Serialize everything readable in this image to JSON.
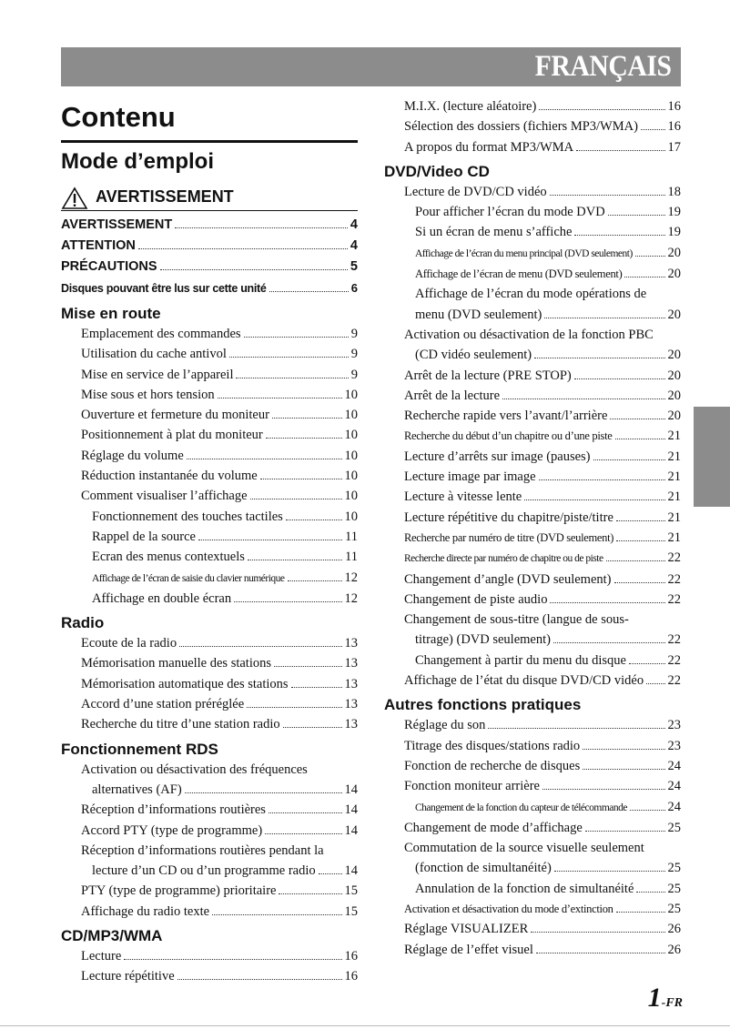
{
  "header": {
    "language": "FRANÇAIS"
  },
  "title": "Contenu",
  "subtitle": "Mode d’emploi",
  "warning_heading": "AVERTISSEMENT",
  "left": [
    {
      "type": "entry",
      "style": "sans",
      "text": "AVERTISSEMENT",
      "page": "4"
    },
    {
      "type": "entry",
      "style": "sans",
      "text": "ATTENTION",
      "page": "4"
    },
    {
      "type": "entry",
      "style": "sans",
      "text": "PRÉCAUTIONS",
      "page": "5"
    },
    {
      "type": "entry",
      "style": "sans small",
      "text": "Disques pouvant être lus sur cette unité",
      "page": "6"
    },
    {
      "type": "section",
      "text": "Mise en route"
    },
    {
      "type": "entry",
      "level": 1,
      "text": "Emplacement des commandes",
      "page": "9"
    },
    {
      "type": "entry",
      "level": 1,
      "text": "Utilisation du cache antivol",
      "page": "9"
    },
    {
      "type": "entry",
      "level": 1,
      "text": "Mise en service de l’appareil",
      "page": "9"
    },
    {
      "type": "entry",
      "level": 1,
      "text": "Mise sous et hors tension",
      "page": "10"
    },
    {
      "type": "entry",
      "level": 1,
      "text": "Ouverture et fermeture du moniteur",
      "page": "10"
    },
    {
      "type": "entry",
      "level": 1,
      "text": "Positionnement à plat du moniteur",
      "page": "10"
    },
    {
      "type": "entry",
      "level": 1,
      "text": "Réglage du volume",
      "page": "10"
    },
    {
      "type": "entry",
      "level": 1,
      "text": "Réduction instantanée du volume",
      "page": "10"
    },
    {
      "type": "entry",
      "level": 1,
      "text": "Comment visualiser l’affichage",
      "page": "10"
    },
    {
      "type": "entry",
      "level": 2,
      "text": "Fonctionnement des touches tactiles",
      "page": "10"
    },
    {
      "type": "entry",
      "level": 2,
      "text": "Rappel de la source",
      "page": "11"
    },
    {
      "type": "entry",
      "level": 2,
      "text": "Ecran des menus contextuels",
      "page": "11"
    },
    {
      "type": "entry",
      "level": 2,
      "style": "xsmall",
      "text": "Affichage de l’écran de saisie du clavier numérique",
      "page": "12"
    },
    {
      "type": "entry",
      "level": 2,
      "text": "Affichage en double écran",
      "page": "12"
    },
    {
      "type": "section",
      "text": "Radio"
    },
    {
      "type": "entry",
      "level": 1,
      "text": "Ecoute de la radio",
      "page": "13"
    },
    {
      "type": "entry",
      "level": 1,
      "text": "Mémorisation manuelle des stations",
      "page": "13"
    },
    {
      "type": "entry",
      "level": 1,
      "text": "Mémorisation automatique des stations",
      "page": "13"
    },
    {
      "type": "entry",
      "level": 1,
      "text": "Accord d’une station préréglée",
      "page": "13"
    },
    {
      "type": "entry",
      "level": 1,
      "text": "Recherche du titre d’une station radio",
      "page": "13"
    },
    {
      "type": "section",
      "text": "Fonctionnement RDS"
    },
    {
      "type": "entry",
      "level": 1,
      "text": "Activation ou désactivation des fréquences",
      "page": null
    },
    {
      "type": "entry",
      "level": 2,
      "text": "alternatives (AF)",
      "page": "14"
    },
    {
      "type": "entry",
      "level": 1,
      "text": "Réception d’informations routières",
      "page": "14"
    },
    {
      "type": "entry",
      "level": 1,
      "text": "Accord PTY (type de programme)",
      "page": "14"
    },
    {
      "type": "entry",
      "level": 1,
      "text": "Réception d’informations routières pendant la",
      "page": null
    },
    {
      "type": "entry",
      "level": 2,
      "text": "lecture d’un CD ou d’un programme radio",
      "page": "14"
    },
    {
      "type": "entry",
      "level": 1,
      "text": "PTY (type de programme) prioritaire",
      "page": "15"
    },
    {
      "type": "entry",
      "level": 1,
      "text": "Affichage du radio texte",
      "page": "15"
    },
    {
      "type": "section",
      "text": "CD/MP3/WMA"
    },
    {
      "type": "entry",
      "level": 1,
      "text": "Lecture",
      "page": "16"
    },
    {
      "type": "entry",
      "level": 1,
      "text": "Lecture répétitive",
      "page": "16"
    }
  ],
  "right": [
    {
      "type": "entry",
      "level": 1,
      "text": "M.I.X. (lecture aléatoire)",
      "page": "16"
    },
    {
      "type": "entry",
      "level": 1,
      "text": "Sélection des dossiers (fichiers MP3/WMA)",
      "page": "16"
    },
    {
      "type": "entry",
      "level": 1,
      "text": "A propos du format MP3/WMA",
      "page": "17"
    },
    {
      "type": "section",
      "text": "DVD/Video CD"
    },
    {
      "type": "entry",
      "level": 1,
      "text": "Lecture de DVD/CD vidéo",
      "page": "18"
    },
    {
      "type": "entry",
      "level": 2,
      "text": "Pour afficher l’écran du mode DVD",
      "page": "19"
    },
    {
      "type": "entry",
      "level": 2,
      "text": "Si un écran de menu s’affiche",
      "page": "19"
    },
    {
      "type": "entry",
      "level": 2,
      "style": "xsmall",
      "text": "Affichage de l’écran du menu principal (DVD seulement)",
      "page": "20"
    },
    {
      "type": "entry",
      "level": 2,
      "style": "small",
      "text": "Affichage de l’écran de menu (DVD seulement)",
      "page": "20"
    },
    {
      "type": "entry",
      "level": 2,
      "text": "Affichage de l’écran du mode opérations de",
      "page": null
    },
    {
      "type": "entry",
      "level": 2,
      "text": "menu (DVD seulement)",
      "page": "20"
    },
    {
      "type": "entry",
      "level": 1,
      "text": "Activation ou désactivation de la fonction PBC",
      "page": null
    },
    {
      "type": "entry",
      "level": 2,
      "text": "(CD vidéo seulement)",
      "page": "20"
    },
    {
      "type": "entry",
      "level": 1,
      "text": "Arrêt de la lecture (PRE STOP)",
      "page": "20"
    },
    {
      "type": "entry",
      "level": 1,
      "text": "Arrêt de la lecture",
      "page": "20"
    },
    {
      "type": "entry",
      "level": 1,
      "text": "Recherche rapide vers l’avant/l’arrière",
      "page": "20"
    },
    {
      "type": "entry",
      "level": 1,
      "style": "small",
      "text": "Recherche du début d’un chapitre ou d’une piste",
      "page": "21"
    },
    {
      "type": "entry",
      "level": 1,
      "text": "Lecture d’arrêts sur image (pauses)",
      "page": "21"
    },
    {
      "type": "entry",
      "level": 1,
      "text": "Lecture image par image",
      "page": "21"
    },
    {
      "type": "entry",
      "level": 1,
      "text": "Lecture à vitesse lente",
      "page": "21"
    },
    {
      "type": "entry",
      "level": 1,
      "text": "Lecture répétitive du chapitre/piste/titre",
      "page": "21"
    },
    {
      "type": "entry",
      "level": 1,
      "style": "small",
      "text": "Recherche par numéro de titre (DVD seulement)",
      "page": "21"
    },
    {
      "type": "entry",
      "level": 1,
      "style": "xsmall",
      "text": "Recherche directe par numéro de chapitre ou de piste",
      "page": "22"
    },
    {
      "type": "entry",
      "level": 1,
      "text": "Changement d’angle (DVD seulement)",
      "page": "22"
    },
    {
      "type": "entry",
      "level": 1,
      "text": "Changement de piste audio",
      "page": "22"
    },
    {
      "type": "entry",
      "level": 1,
      "text": "Changement de sous-titre (langue de sous-",
      "page": null
    },
    {
      "type": "entry",
      "level": 2,
      "text": "titrage) (DVD seulement)",
      "page": "22"
    },
    {
      "type": "entry",
      "level": 2,
      "text": "Changement à partir du menu du disque",
      "page": "22"
    },
    {
      "type": "entry",
      "level": 1,
      "text": "Affichage de l’état du disque DVD/CD vidéo",
      "page": "22"
    },
    {
      "type": "section",
      "text": "Autres fonctions pratiques"
    },
    {
      "type": "entry",
      "level": 1,
      "text": "Réglage du son",
      "page": "23"
    },
    {
      "type": "entry",
      "level": 1,
      "text": "Titrage des disques/stations radio",
      "page": "23"
    },
    {
      "type": "entry",
      "level": 1,
      "text": "Fonction de recherche de disques",
      "page": "24"
    },
    {
      "type": "entry",
      "level": 1,
      "text": "Fonction moniteur arrière",
      "page": "24"
    },
    {
      "type": "entry",
      "level": 2,
      "style": "xsmall",
      "text": "Changement de la fonction du capteur de télécommande",
      "page": "24"
    },
    {
      "type": "entry",
      "level": 1,
      "text": "Changement de mode d’affichage",
      "page": "25"
    },
    {
      "type": "entry",
      "level": 1,
      "text": "Commutation de la source visuelle seulement",
      "page": null
    },
    {
      "type": "entry",
      "level": 2,
      "text": "(fonction de simultanéité)",
      "page": "25"
    },
    {
      "type": "entry",
      "level": 2,
      "text": "Annulation de la fonction de simultanéité",
      "page": "25"
    },
    {
      "type": "entry",
      "level": 1,
      "style": "small",
      "text": "Activation et désactivation du mode d’extinction",
      "page": "25"
    },
    {
      "type": "entry",
      "level": 1,
      "text": "Réglage VISUALIZER",
      "page": "26"
    },
    {
      "type": "entry",
      "level": 1,
      "text": "Réglage de l’effet visuel",
      "page": "26"
    }
  ],
  "footer": {
    "page_number": "1",
    "page_suffix": "-FR"
  }
}
